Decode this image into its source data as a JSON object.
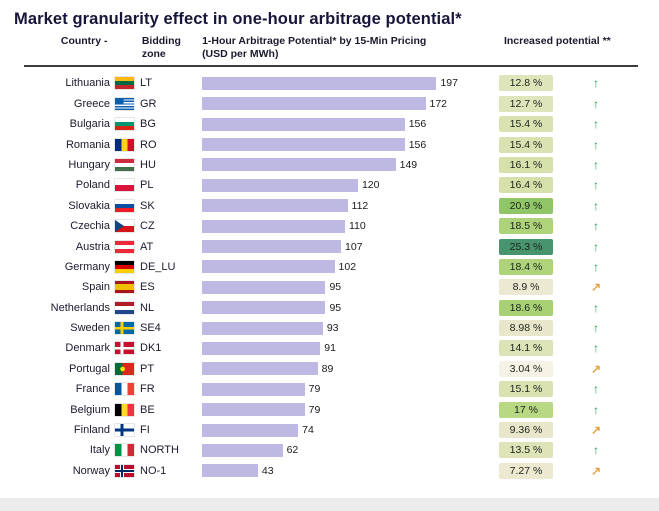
{
  "title": "Market granularity effect in one-hour arbitrage potential*",
  "headers": {
    "country": "Country -",
    "zone": "Bidding zone",
    "bar": "1-Hour Arbitrage Potential* by 15-Min Pricing",
    "bar_unit": "(USD per MWh)",
    "increase": "Increased potential **"
  },
  "glyphs": {
    "up": "↑",
    "flat": "↗"
  },
  "colors": {
    "bar": "#bdb9e3",
    "up_arrow": "#1f9d55",
    "flat_arrow": "#e6a23c",
    "separator": "#3c3c3c"
  },
  "chart_data": {
    "type": "bar",
    "orientation": "horizontal",
    "title": "Market granularity effect in one-hour arbitrage potential*",
    "value_label": "1-Hour Arbitrage Potential* by 15-Min Pricing (USD per MWh)",
    "unit": "USD per MWh",
    "max_value": 197,
    "rows": [
      {
        "country": "Lithuania",
        "zone": "LT",
        "flag": "lt",
        "value": 197,
        "increase": "12.8 %",
        "badge_color": "#dfe5bb",
        "trend": "up"
      },
      {
        "country": "Greece",
        "zone": "GR",
        "flag": "gr",
        "value": 172,
        "increase": "12.7 %",
        "badge_color": "#dfe5bb",
        "trend": "up"
      },
      {
        "country": "Bulgaria",
        "zone": "BG",
        "flag": "bg",
        "value": 156,
        "increase": "15.4 %",
        "badge_color": "#dae2b2",
        "trend": "up"
      },
      {
        "country": "Romania",
        "zone": "RO",
        "flag": "ro",
        "value": 156,
        "increase": "15.4 %",
        "badge_color": "#dae2b2",
        "trend": "up"
      },
      {
        "country": "Hungary",
        "zone": "HU",
        "flag": "hu",
        "value": 149,
        "increase": "16.1 %",
        "badge_color": "#d6e0aa",
        "trend": "up"
      },
      {
        "country": "Poland",
        "zone": "PL",
        "flag": "pl",
        "value": 120,
        "increase": "16.4 %",
        "badge_color": "#d6e0aa",
        "trend": "up"
      },
      {
        "country": "Slovakia",
        "zone": "SK",
        "flag": "sk",
        "value": 112,
        "increase": "20.9 %",
        "badge_color": "#90c568",
        "trend": "up"
      },
      {
        "country": "Czechia",
        "zone": "CZ",
        "flag": "cz",
        "value": 110,
        "increase": "18.5 %",
        "badge_color": "#aed37b",
        "trend": "up"
      },
      {
        "country": "Austria",
        "zone": "AT",
        "flag": "at",
        "value": 107,
        "increase": "25.3 %",
        "badge_color": "#47946e",
        "trend": "up"
      },
      {
        "country": "Germany",
        "zone": "DE_LU",
        "flag": "de",
        "value": 102,
        "increase": "18.4 %",
        "badge_color": "#aed37b",
        "trend": "up"
      },
      {
        "country": "Spain",
        "zone": "ES",
        "flag": "es",
        "value": 95,
        "increase": "8.9 %",
        "badge_color": "#ece9d2",
        "trend": "flat"
      },
      {
        "country": "Netherlands",
        "zone": "NL",
        "flag": "nl",
        "value": 95,
        "increase": "18.6 %",
        "badge_color": "#a8d075",
        "trend": "up"
      },
      {
        "country": "Sweden",
        "zone": "SE4",
        "flag": "se",
        "value": 93,
        "increase": "8.98 %",
        "badge_color": "#e9e7cb",
        "trend": "up"
      },
      {
        "country": "Denmark",
        "zone": "DK1",
        "flag": "dk",
        "value": 91,
        "increase": "14.1 %",
        "badge_color": "#dce3b6",
        "trend": "up"
      },
      {
        "country": "Portugal",
        "zone": "PT",
        "flag": "pt",
        "value": 89,
        "increase": "3.04 %",
        "badge_color": "#f6f3e6",
        "trend": "flat"
      },
      {
        "country": "France",
        "zone": "FR",
        "flag": "fr",
        "value": 79,
        "increase": "15.1 %",
        "badge_color": "#dae2b2",
        "trend": "up"
      },
      {
        "country": "Belgium",
        "zone": "BE",
        "flag": "be",
        "value": 79,
        "increase": "17 %",
        "badge_color": "#b9d884",
        "trend": "up"
      },
      {
        "country": "Finland",
        "zone": "FI",
        "flag": "fi",
        "value": 74,
        "increase": "9.36 %",
        "badge_color": "#e9e7cb",
        "trend": "flat"
      },
      {
        "country": "Italy",
        "zone": "NORTH",
        "flag": "it",
        "value": 62,
        "increase": "13.5 %",
        "badge_color": "#dee4b8",
        "trend": "up"
      },
      {
        "country": "Norway",
        "zone": "NO-1",
        "flag": "no",
        "value": 43,
        "increase": "7.27 %",
        "badge_color": "#ece9d0",
        "trend": "flat"
      }
    ]
  }
}
